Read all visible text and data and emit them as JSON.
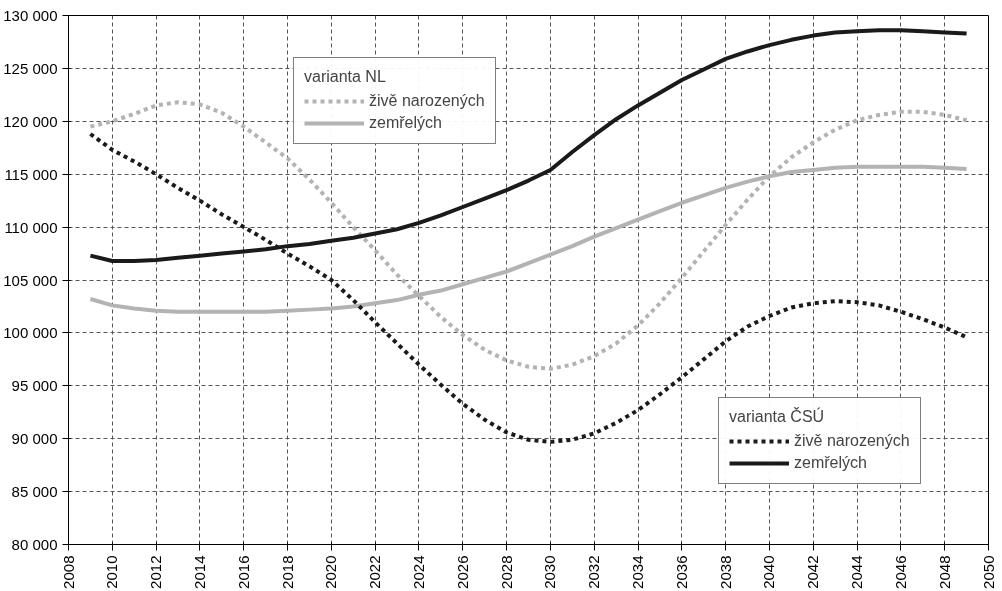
{
  "chart_data": {
    "type": "line",
    "xlim": [
      2008,
      2050
    ],
    "ylim": [
      80000,
      130000
    ],
    "xticks": [
      2008,
      2010,
      2012,
      2014,
      2016,
      2018,
      2020,
      2022,
      2024,
      2026,
      2028,
      2030,
      2032,
      2034,
      2036,
      2038,
      2040,
      2042,
      2044,
      2046,
      2048,
      2050
    ],
    "yticks": [
      {
        "value": 80000,
        "label": "80 000"
      },
      {
        "value": 85000,
        "label": "85 000"
      },
      {
        "value": 90000,
        "label": "90 000"
      },
      {
        "value": 95000,
        "label": "95 000"
      },
      {
        "value": 100000,
        "label": "100 000"
      },
      {
        "value": 105000,
        "label": "105 000"
      },
      {
        "value": 110000,
        "label": "110 000"
      },
      {
        "value": 115000,
        "label": "115 000"
      },
      {
        "value": 120000,
        "label": "120 000"
      },
      {
        "value": 125000,
        "label": "125 000"
      },
      {
        "value": 130000,
        "label": "130 000"
      }
    ],
    "x": [
      2009,
      2010,
      2011,
      2012,
      2013,
      2014,
      2015,
      2016,
      2017,
      2018,
      2019,
      2020,
      2021,
      2022,
      2023,
      2024,
      2025,
      2026,
      2027,
      2028,
      2029,
      2030,
      2031,
      2032,
      2033,
      2034,
      2035,
      2036,
      2037,
      2038,
      2039,
      2040,
      2041,
      2042,
      2043,
      2044,
      2045,
      2046,
      2047,
      2048,
      2049
    ],
    "grid": true,
    "legend": "bottom right",
    "annotations": [
      "varianta NL",
      "varianta ČSÚ"
    ],
    "series": [
      {
        "name": "živě narozených",
        "color": "#b3b3b3",
        "line_style": "dotted",
        "values": [
          119500,
          120000,
          120700,
          121500,
          121800,
          121600,
          120800,
          119500,
          118000,
          116500,
          114500,
          112300,
          110000,
          107800,
          105500,
          103500,
          101500,
          99800,
          98400,
          97400,
          96800,
          96600,
          97000,
          97800,
          99000,
          100700,
          102800,
          105200,
          107700,
          110200,
          112600,
          114800,
          116600,
          118000,
          119200,
          120100,
          120600,
          120900,
          120900,
          120600,
          120100
        ]
      },
      {
        "name": "zemřelých",
        "color": "#b3b3b3",
        "line_style": "solid",
        "values": [
          103200,
          102600,
          102300,
          102100,
          102000,
          102000,
          102000,
          102000,
          102000,
          102100,
          102200,
          102300,
          102500,
          102800,
          103100,
          103600,
          104000,
          104600,
          105200,
          105800,
          106600,
          107400,
          108200,
          109100,
          109900,
          110700,
          111500,
          112300,
          113000,
          113700,
          114300,
          114800,
          115200,
          115400,
          115600,
          115700,
          115700,
          115700,
          115700,
          115600,
          115500
        ]
      },
      {
        "name": "živě narozených",
        "color": "#1a1a1a",
        "line_style": "dotted",
        "values": [
          118800,
          117300,
          116200,
          115000,
          113700,
          112500,
          111200,
          110000,
          108800,
          107500,
          106300,
          105000,
          103100,
          101000,
          99000,
          97000,
          95100,
          93300,
          91800,
          90600,
          89900,
          89700,
          89900,
          90500,
          91500,
          92700,
          94200,
          95800,
          97500,
          99200,
          100600,
          101600,
          102400,
          102800,
          103000,
          102900,
          102600,
          102000,
          101300,
          100500,
          99600
        ]
      },
      {
        "name": "zemřelých",
        "color": "#1a1a1a",
        "line_style": "solid",
        "values": [
          107300,
          106800,
          106800,
          106900,
          107100,
          107300,
          107500,
          107700,
          107900,
          108200,
          108400,
          108700,
          109000,
          109400,
          109800,
          110400,
          111100,
          111900,
          112700,
          113500,
          114400,
          115400,
          117100,
          118700,
          120200,
          121500,
          122700,
          123900,
          124900,
          125900,
          126600,
          127200,
          127700,
          128100,
          128400,
          128500,
          128600,
          128600,
          128500,
          128400,
          128300
        ]
      }
    ]
  }
}
